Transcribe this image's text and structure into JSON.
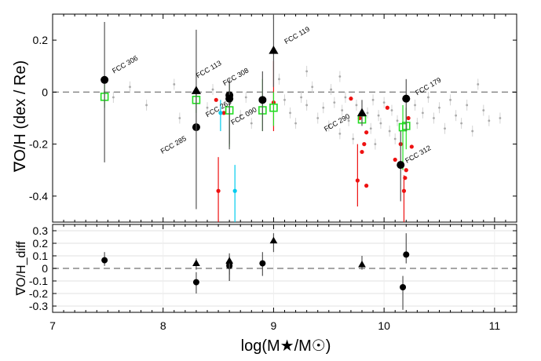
{
  "chart_data": [
    {
      "type": "scatter",
      "panel": "top",
      "ylabel": "∇O/H (dex / Re)",
      "xlim": [
        7,
        11.2
      ],
      "ylim": [
        -0.5,
        0.3
      ],
      "xticks": [
        "7",
        "8",
        "9",
        "10",
        "11"
      ],
      "yticks": [
        {
          "v": 0.2,
          "label": "0.2"
        },
        {
          "v": 0,
          "label": "0"
        },
        {
          "v": -0.2,
          "label": "-0.2"
        },
        {
          "v": -0.4,
          "label": "-0.4"
        }
      ],
      "reference_line": 0,
      "annotations": [
        {
          "label": "FCC 306",
          "x": 7.47,
          "y": 0.047
        },
        {
          "label": "FCC 113",
          "x": 8.3,
          "y": 0.005
        },
        {
          "label": "FCC 308",
          "x": 8.6,
          "y": -0.012
        },
        {
          "label": "FCC 119",
          "x": 9.0,
          "y": 0.16
        },
        {
          "label": "FCC 285",
          "x": 8.3,
          "y": -0.135
        },
        {
          "label": "FCC 263",
          "x": 8.6,
          "y": -0.025
        },
        {
          "label": "FCC 090",
          "x": 8.9,
          "y": -0.03
        },
        {
          "label": "FCC 290",
          "x": 9.8,
          "y": -0.08
        },
        {
          "label": "FCC 179",
          "x": 10.2,
          "y": -0.025
        },
        {
          "label": "FCC 312",
          "x": 10.15,
          "y": -0.28
        }
      ],
      "series": [
        {
          "name": "black circles",
          "color": "#000000",
          "marker": "circle",
          "points": [
            {
              "x": 7.47,
              "y": 0.047,
              "ylo": -0.27,
              "yhi": 0.27
            },
            {
              "x": 8.3,
              "y": -0.135,
              "ylo": -0.45,
              "yhi": 0.02
            },
            {
              "x": 8.6,
              "y": -0.012,
              "ylo": -0.2,
              "yhi": 0.05
            },
            {
              "x": 8.6,
              "y": -0.025,
              "ylo": -0.22,
              "yhi": 0.04
            },
            {
              "x": 8.9,
              "y": -0.03,
              "ylo": -0.15,
              "yhi": 0.08
            },
            {
              "x": 10.2,
              "y": -0.025,
              "ylo": -0.15,
              "yhi": 0.05
            },
            {
              "x": 10.15,
              "y": -0.28,
              "ylo": -0.42,
              "yhi": -0.15
            }
          ]
        },
        {
          "name": "black triangles",
          "color": "#000000",
          "marker": "triangle",
          "points": [
            {
              "x": 8.3,
              "y": 0.005,
              "ylo": -0.15,
              "yhi": 0.24
            },
            {
              "x": 9.0,
              "y": 0.16,
              "ylo": 0.02,
              "yhi": 0.3
            },
            {
              "x": 9.8,
              "y": -0.08,
              "ylo": -0.13,
              "yhi": -0.03
            }
          ]
        },
        {
          "name": "green open squares",
          "color": "#22dd22",
          "marker": "square",
          "points": [
            {
              "x": 7.47,
              "y": -0.018,
              "ylo": -0.06,
              "yhi": 0.03
            },
            {
              "x": 8.3,
              "y": -0.03,
              "ylo": -0.08,
              "yhi": 0.02
            },
            {
              "x": 8.6,
              "y": -0.07,
              "ylo": -0.21,
              "yhi": 0.03
            },
            {
              "x": 8.9,
              "y": -0.07,
              "ylo": -0.15,
              "yhi": 0.05
            },
            {
              "x": 9.0,
              "y": -0.06,
              "ylo": -0.13,
              "yhi": 0.0
            },
            {
              "x": 9.8,
              "y": -0.105,
              "ylo": -0.12,
              "yhi": -0.09
            },
            {
              "x": 10.17,
              "y": -0.135,
              "ylo": -0.3,
              "yhi": -0.05
            },
            {
              "x": 10.2,
              "y": -0.13,
              "ylo": -0.22,
              "yhi": -0.06
            }
          ]
        },
        {
          "name": "red points",
          "color": "#ee1111",
          "marker": "dot",
          "points": [
            {
              "x": 8.48,
              "y": -0.03
            },
            {
              "x": 8.5,
              "y": -0.38,
              "ylo": -0.55,
              "yhi": -0.25
            },
            {
              "x": 8.55,
              "y": -0.08
            },
            {
              "x": 9.0,
              "y": -0.04,
              "ylo": -0.15,
              "yhi": 0.12
            },
            {
              "x": 9.7,
              "y": -0.025
            },
            {
              "x": 9.76,
              "y": -0.34,
              "ylo": -0.44,
              "yhi": -0.2
            },
            {
              "x": 9.78,
              "y": -0.1
            },
            {
              "x": 9.8,
              "y": -0.23
            },
            {
              "x": 9.82,
              "y": -0.2
            },
            {
              "x": 9.84,
              "y": -0.155
            },
            {
              "x": 9.84,
              "y": -0.36
            },
            {
              "x": 10.03,
              "y": -0.06
            },
            {
              "x": 10.1,
              "y": -0.26
            },
            {
              "x": 10.15,
              "y": -0.2
            },
            {
              "x": 10.18,
              "y": -0.38,
              "ylo": -0.5,
              "yhi": -0.32
            },
            {
              "x": 10.19,
              "y": -0.33
            },
            {
              "x": 10.2,
              "y": -0.3
            },
            {
              "x": 10.22,
              "y": -0.1
            },
            {
              "x": 10.25,
              "y": -0.21
            }
          ]
        },
        {
          "name": "cyan points",
          "color": "#00ccee",
          "marker": "dot",
          "points": [
            {
              "x": 8.65,
              "y": -0.38,
              "ylo": -0.5,
              "yhi": -0.28
            },
            {
              "x": 8.52,
              "y": -0.08,
              "ylo": -0.15,
              "yhi": -0.03
            }
          ]
        },
        {
          "name": "grey background sample",
          "color": "#aaaaaa",
          "marker": "small-dot",
          "points": [
            {
              "x": 7.55,
              "y": -0.02
            },
            {
              "x": 7.7,
              "y": 0.02
            },
            {
              "x": 7.85,
              "y": -0.05
            },
            {
              "x": 8.1,
              "y": 0.03
            },
            {
              "x": 8.15,
              "y": -0.1
            },
            {
              "x": 8.4,
              "y": -0.06
            },
            {
              "x": 8.45,
              "y": 0.01
            },
            {
              "x": 8.7,
              "y": -0.09
            },
            {
              "x": 8.75,
              "y": -0.02
            },
            {
              "x": 8.8,
              "y": -0.12
            },
            {
              "x": 9.05,
              "y": 0.05
            },
            {
              "x": 9.1,
              "y": -0.03
            },
            {
              "x": 9.15,
              "y": -0.08
            },
            {
              "x": 9.2,
              "y": -0.12
            },
            {
              "x": 9.25,
              "y": -0.02
            },
            {
              "x": 9.3,
              "y": -0.05
            },
            {
              "x": 9.35,
              "y": 0.02
            },
            {
              "x": 9.4,
              "y": -0.1
            },
            {
              "x": 9.45,
              "y": -0.06
            },
            {
              "x": 9.5,
              "y": -0.13
            },
            {
              "x": 9.52,
              "y": 0.01
            },
            {
              "x": 9.55,
              "y": -0.04
            },
            {
              "x": 9.6,
              "y": -0.16
            },
            {
              "x": 9.62,
              "y": -0.07
            },
            {
              "x": 9.65,
              "y": -0.02
            },
            {
              "x": 9.68,
              "y": -0.11
            },
            {
              "x": 9.72,
              "y": -0.18
            },
            {
              "x": 9.75,
              "y": -0.05
            },
            {
              "x": 9.85,
              "y": -0.08
            },
            {
              "x": 9.88,
              "y": -0.14
            },
            {
              "x": 9.9,
              "y": -0.03
            },
            {
              "x": 9.92,
              "y": -0.2
            },
            {
              "x": 9.95,
              "y": -0.09
            },
            {
              "x": 9.97,
              "y": -0.12
            },
            {
              "x": 10.0,
              "y": -0.04
            },
            {
              "x": 10.05,
              "y": -0.15
            },
            {
              "x": 10.07,
              "y": -0.07
            },
            {
              "x": 10.12,
              "y": -0.11
            },
            {
              "x": 10.28,
              "y": -0.05
            },
            {
              "x": 10.3,
              "y": -0.12
            },
            {
              "x": 10.35,
              "y": -0.08
            },
            {
              "x": 10.4,
              "y": -0.02
            },
            {
              "x": 10.45,
              "y": -0.1
            },
            {
              "x": 10.5,
              "y": -0.06
            },
            {
              "x": 10.55,
              "y": -0.14
            },
            {
              "x": 10.6,
              "y": -0.03
            },
            {
              "x": 10.65,
              "y": -0.09
            },
            {
              "x": 10.7,
              "y": -0.12
            },
            {
              "x": 10.75,
              "y": -0.05
            },
            {
              "x": 10.8,
              "y": -0.15
            },
            {
              "x": 10.85,
              "y": 0.03
            },
            {
              "x": 10.9,
              "y": -0.07
            },
            {
              "x": 10.95,
              "y": -0.11
            },
            {
              "x": 11.05,
              "y": -0.1
            },
            {
              "x": 10.1,
              "y": -0.18
            },
            {
              "x": 9.6,
              "y": 0.06
            },
            {
              "x": 9.3,
              "y": 0.08
            }
          ]
        }
      ]
    },
    {
      "type": "scatter",
      "panel": "bottom",
      "ylabel": "∇O/H_diff",
      "xlabel": "log(M★/M☉)",
      "xlim": [
        7,
        11.2
      ],
      "ylim": [
        -0.35,
        0.35
      ],
      "xticks": [
        "7",
        "8",
        "9",
        "10",
        "11"
      ],
      "yticks": [
        {
          "v": 0.3,
          "label": "0.3"
        },
        {
          "v": 0.2,
          "label": "0.2"
        },
        {
          "v": 0.1,
          "label": "0.1"
        },
        {
          "v": 0,
          "label": "0"
        },
        {
          "v": -0.1,
          "label": "-0.1"
        },
        {
          "v": -0.2,
          "label": "-0.2"
        },
        {
          "v": -0.3,
          "label": "-0.3"
        }
      ],
      "reference_line": 0,
      "series": [
        {
          "name": "black circles",
          "color": "#000000",
          "marker": "circle",
          "points": [
            {
              "x": 7.47,
              "y": 0.065,
              "ylo": 0.02,
              "yhi": 0.13
            },
            {
              "x": 8.3,
              "y": -0.11,
              "ylo": -0.2,
              "yhi": -0.03
            },
            {
              "x": 8.6,
              "y": 0.04,
              "ylo": -0.1,
              "yhi": 0.1
            },
            {
              "x": 8.6,
              "y": 0.02,
              "ylo": -0.1,
              "yhi": 0.08
            },
            {
              "x": 8.9,
              "y": 0.04,
              "ylo": -0.06,
              "yhi": 0.13
            },
            {
              "x": 10.17,
              "y": -0.15,
              "ylo": -0.33,
              "yhi": -0.06
            },
            {
              "x": 10.2,
              "y": 0.11,
              "ylo": 0.04,
              "yhi": 0.28
            }
          ]
        },
        {
          "name": "black triangles",
          "color": "#000000",
          "marker": "triangle",
          "points": [
            {
              "x": 8.3,
              "y": 0.04,
              "ylo": -0.01,
              "yhi": 0.08
            },
            {
              "x": 8.6,
              "y": 0.06,
              "ylo": -0.05,
              "yhi": 0.12
            },
            {
              "x": 9.0,
              "y": 0.22,
              "ylo": 0.13,
              "yhi": 0.28
            },
            {
              "x": 9.8,
              "y": 0.03,
              "ylo": -0.01,
              "yhi": 0.1
            }
          ]
        }
      ]
    }
  ]
}
